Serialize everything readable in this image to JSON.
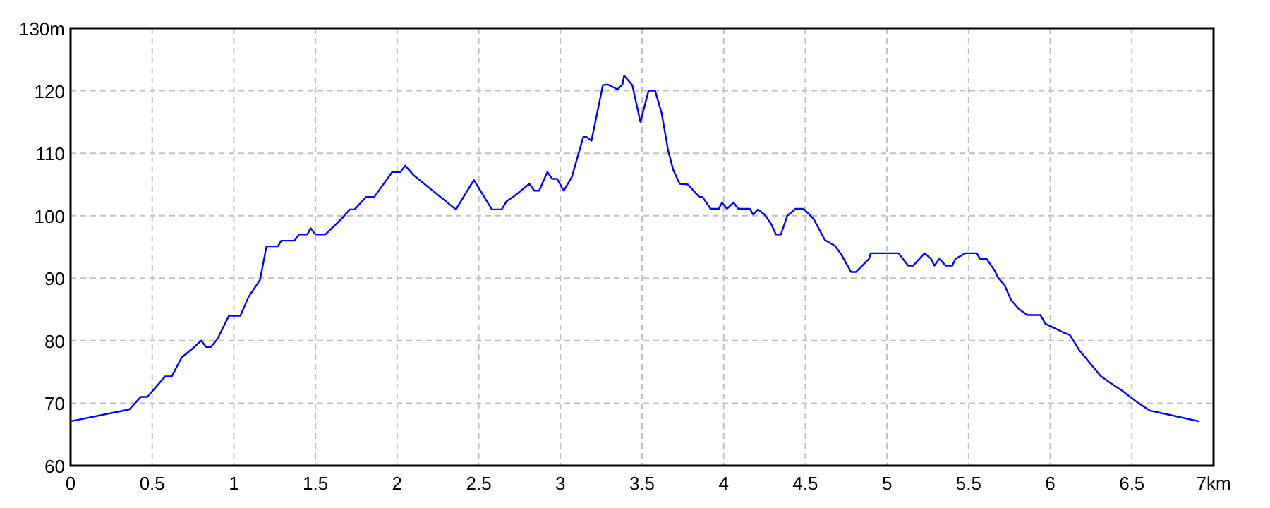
{
  "chart_data": {
    "type": "line",
    "x": [
      0,
      0.36,
      0.43,
      0.47,
      0.58,
      0.62,
      0.68,
      0.75,
      0.8,
      0.83,
      0.86,
      0.9,
      0.97,
      1.04,
      1.09,
      1.16,
      1.2,
      1.27,
      1.29,
      1.37,
      1.4,
      1.45,
      1.47,
      1.5,
      1.56,
      1.66,
      1.71,
      1.74,
      1.81,
      1.86,
      1.97,
      2.02,
      2.05,
      2.1,
      2.36,
      2.47,
      2.58,
      2.64,
      2.67,
      2.72,
      2.81,
      2.84,
      2.87,
      2.92,
      2.95,
      2.98,
      3.02,
      3.07,
      3.14,
      3.16,
      3.19,
      3.21,
      3.26,
      3.29,
      3.35,
      3.38,
      3.39,
      3.44,
      3.49,
      3.54,
      3.58,
      3.62,
      3.66,
      3.69,
      3.73,
      3.78,
      3.85,
      3.87,
      3.92,
      3.97,
      3.99,
      4.02,
      4.06,
      4.09,
      4.16,
      4.18,
      4.21,
      4.25,
      4.29,
      4.32,
      4.35,
      4.39,
      4.44,
      4.49,
      4.55,
      4.62,
      4.68,
      4.72,
      4.78,
      4.81,
      4.89,
      4.9,
      5.07,
      5.13,
      5.16,
      5.23,
      5.27,
      5.29,
      5.32,
      5.36,
      5.4,
      5.42,
      5.48,
      5.55,
      5.57,
      5.61,
      5.66,
      5.68,
      5.72,
      5.76,
      5.81,
      5.86,
      5.94,
      5.97,
      6.01,
      6.09,
      6.12,
      6.18,
      6.25,
      6.31,
      6.37,
      6.44,
      6.53,
      6.61,
      6.65,
      6.77,
      6.91
    ],
    "series": [
      {
        "color": "#0000ff",
        "values": [
          67.1,
          69,
          71,
          71,
          74.3,
          74.3,
          77.3,
          78.8,
          80,
          79,
          79,
          80.3,
          84,
          84,
          87,
          89.7,
          95.1,
          95.1,
          96,
          96,
          97,
          97,
          98,
          97,
          97,
          99.5,
          101,
          101,
          103,
          103,
          107,
          107,
          108,
          106.5,
          101,
          105.7,
          101,
          101,
          102.3,
          103.2,
          105.1,
          104,
          104,
          107,
          105.9,
          105.9,
          104,
          106.2,
          112.6,
          112.6,
          112,
          114.5,
          120.9,
          121,
          120.2,
          121,
          122.4,
          120.9,
          115,
          120,
          120,
          116.4,
          110.4,
          107.4,
          105.1,
          105,
          103,
          103,
          101.1,
          101.1,
          102.1,
          101.1,
          102.1,
          101.1,
          101.1,
          100.2,
          101,
          100.2,
          98.7,
          97,
          97,
          100,
          101.1,
          101.1,
          99.5,
          96.1,
          95.2,
          93.8,
          91,
          91,
          93.1,
          94,
          94,
          92,
          92,
          94,
          93.1,
          92,
          93.1,
          92,
          92,
          93.1,
          94,
          94,
          93.1,
          93.1,
          91.2,
          90.1,
          88.9,
          86.5,
          85,
          84.1,
          84.1,
          82.7,
          82.2,
          81.2,
          80.9,
          78.4,
          76.2,
          74.3,
          73.2,
          72,
          70.2,
          68.8,
          68.6,
          67.9,
          67.1
        ]
      }
    ],
    "xlim": [
      0,
      7
    ],
    "xticks": [
      0,
      0.5,
      1,
      1.5,
      2,
      2.5,
      3,
      3.5,
      4,
      4.5,
      5,
      5.5,
      6,
      6.5,
      {
        "value": 7,
        "label": "7km"
      }
    ],
    "ylim": [
      60,
      130
    ],
    "yticks": [
      60,
      70,
      80,
      90,
      100,
      110,
      120,
      {
        "value": 130,
        "label": "130m"
      }
    ],
    "grid": true,
    "marker": "none",
    "line_style": "solid"
  }
}
